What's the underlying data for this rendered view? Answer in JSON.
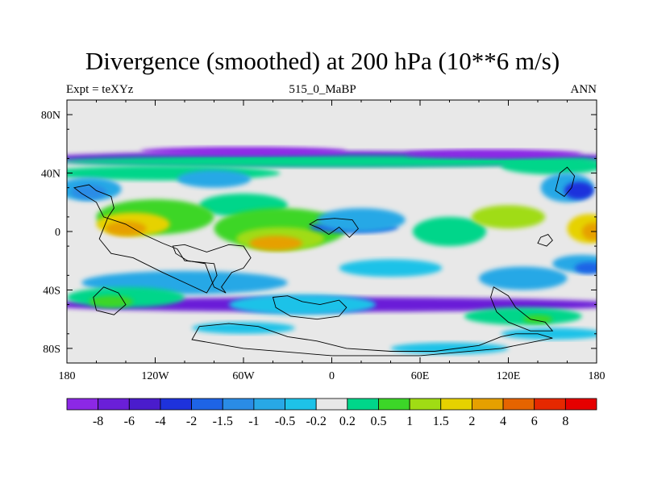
{
  "title": "Divergence (smoothed) at 200 hPa (10**6 m/s)",
  "subtitle_left": "Expt = teXYz",
  "subtitle_center": "515_0_MaBP",
  "subtitle_right": "ANN",
  "axes": {
    "lon_range": [
      -180,
      180
    ],
    "lat_range": [
      -90,
      90
    ],
    "lon_ticks": [
      {
        "value": -180,
        "label": "180"
      },
      {
        "value": -120,
        "label": "120W"
      },
      {
        "value": -60,
        "label": "60W"
      },
      {
        "value": 0,
        "label": "0"
      },
      {
        "value": 60,
        "label": "60E"
      },
      {
        "value": 120,
        "label": "120E"
      },
      {
        "value": 180,
        "label": "180"
      }
    ],
    "lat_ticks": [
      {
        "value": 80,
        "label": "80N"
      },
      {
        "value": 40,
        "label": "40N"
      },
      {
        "value": 0,
        "label": "0"
      },
      {
        "value": -40,
        "label": "40S"
      },
      {
        "value": -80,
        "label": "80S"
      }
    ],
    "minor_lon_step": 20,
    "minor_lat_step": 20
  },
  "colorbar": {
    "levels": [
      "-8",
      "-6",
      "-4",
      "-2",
      "-1.5",
      "-1",
      "-0.5",
      "-0.2",
      "0.2",
      "0.5",
      "1",
      "1.5",
      "2",
      "4",
      "6",
      "8"
    ],
    "colors": [
      "#8c28e6",
      "#6a1fd8",
      "#4a1ccc",
      "#1e32dc",
      "#1e64e6",
      "#2a8ce6",
      "#28a8e6",
      "#1ec2e8",
      "#e8e8e8",
      "#00d68a",
      "#3cd628",
      "#a0dc14",
      "#e6d200",
      "#e6a000",
      "#e66400",
      "#e62800",
      "#e60000"
    ]
  },
  "colors": {
    "background": "#e8e8e8",
    "outline": "#000000"
  },
  "field_blobs": [
    {
      "level": 1,
      "cx": 0,
      "cy": 50,
      "rx": 200,
      "ry": 5
    },
    {
      "level": 1,
      "cx": 0,
      "cy": -50,
      "rx": 200,
      "ry": 5
    },
    {
      "level": 9,
      "cx": 0,
      "cy": 48,
      "rx": 185,
      "ry": 4
    },
    {
      "level": 9,
      "cx": -115,
      "cy": 40,
      "rx": 80,
      "ry": 5
    },
    {
      "level": 9,
      "cx": 150,
      "cy": 45,
      "rx": 35,
      "ry": 6
    },
    {
      "level": 6,
      "cx": -165,
      "cy": 29,
      "rx": 22,
      "ry": 8
    },
    {
      "level": 5,
      "cx": -165,
      "cy": 27,
      "rx": 12,
      "ry": 5
    },
    {
      "level": 6,
      "cx": -80,
      "cy": 36,
      "rx": 25,
      "ry": 6
    },
    {
      "level": 6,
      "cx": 160,
      "cy": 30,
      "rx": 18,
      "ry": 10
    },
    {
      "level": 3,
      "cx": 168,
      "cy": 28,
      "rx": 10,
      "ry": 6
    },
    {
      "level": 9,
      "cx": -60,
      "cy": 18,
      "rx": 30,
      "ry": 8
    },
    {
      "level": 10,
      "cx": -120,
      "cy": 10,
      "rx": 40,
      "ry": 12
    },
    {
      "level": 12,
      "cx": -135,
      "cy": 5,
      "rx": 25,
      "ry": 8
    },
    {
      "level": 13,
      "cx": -140,
      "cy": 2,
      "rx": 14,
      "ry": 5
    },
    {
      "level": 10,
      "cx": -35,
      "cy": 2,
      "rx": 45,
      "ry": 14
    },
    {
      "level": 11,
      "cx": -35,
      "cy": -5,
      "rx": 30,
      "ry": 8
    },
    {
      "level": 13,
      "cx": -38,
      "cy": -8,
      "rx": 18,
      "ry": 5
    },
    {
      "level": 4,
      "cx": 15,
      "cy": 3,
      "rx": 30,
      "ry": 4
    },
    {
      "level": 6,
      "cx": 20,
      "cy": 8,
      "rx": 30,
      "ry": 8
    },
    {
      "level": 9,
      "cx": 80,
      "cy": 0,
      "rx": 25,
      "ry": 10
    },
    {
      "level": 11,
      "cx": 120,
      "cy": 10,
      "rx": 25,
      "ry": 8
    },
    {
      "level": 12,
      "cx": 175,
      "cy": 2,
      "rx": 15,
      "ry": 10
    },
    {
      "level": 13,
      "cx": 178,
      "cy": 0,
      "rx": 8,
      "ry": 6
    },
    {
      "level": 6,
      "cx": 170,
      "cy": -22,
      "rx": 20,
      "ry": 6
    },
    {
      "level": 4,
      "cx": 175,
      "cy": -25,
      "rx": 10,
      "ry": 4
    },
    {
      "level": 6,
      "cx": -100,
      "cy": -35,
      "rx": 70,
      "ry": 8
    },
    {
      "level": 7,
      "cx": 40,
      "cy": -25,
      "rx": 35,
      "ry": 6
    },
    {
      "level": 6,
      "cx": 130,
      "cy": -32,
      "rx": 30,
      "ry": 8
    },
    {
      "level": 9,
      "cx": -140,
      "cy": -45,
      "rx": 40,
      "ry": 7
    },
    {
      "level": 10,
      "cx": -150,
      "cy": -48,
      "rx": 15,
      "ry": 4
    },
    {
      "level": 7,
      "cx": -20,
      "cy": -50,
      "rx": 50,
      "ry": 7
    },
    {
      "level": 9,
      "cx": 130,
      "cy": -58,
      "rx": 40,
      "ry": 6
    },
    {
      "level": 10,
      "cx": 140,
      "cy": -60,
      "rx": 10,
      "ry": 3
    },
    {
      "level": 7,
      "cx": -60,
      "cy": -66,
      "rx": 35,
      "ry": 4
    },
    {
      "level": 7,
      "cx": 80,
      "cy": -80,
      "rx": 40,
      "ry": 4
    },
    {
      "level": 7,
      "cx": 150,
      "cy": -70,
      "rx": 35,
      "ry": 4
    },
    {
      "level": 0,
      "cx": -60,
      "cy": 55,
      "rx": 70,
      "ry": 3
    },
    {
      "level": 0,
      "cx": 110,
      "cy": 53,
      "rx": 60,
      "ry": 3
    }
  ],
  "continents": [
    [
      [
        -175,
        30
      ],
      [
        -165,
        32
      ],
      [
        -160,
        28
      ],
      [
        -150,
        24
      ],
      [
        -148,
        16
      ],
      [
        -152,
        10
      ],
      [
        -158,
        -5
      ],
      [
        -150,
        -15
      ],
      [
        -135,
        -18
      ],
      [
        -115,
        -28
      ],
      [
        -100,
        -35
      ],
      [
        -85,
        -42
      ],
      [
        -78,
        -30
      ],
      [
        -80,
        -22
      ],
      [
        -100,
        -20
      ],
      [
        -105,
        -12
      ],
      [
        -115,
        -8
      ],
      [
        -128,
        -2
      ],
      [
        -140,
        5
      ],
      [
        -155,
        10
      ],
      [
        -160,
        20
      ],
      [
        -170,
        26
      ]
    ],
    [
      [
        -108,
        -10
      ],
      [
        -100,
        -9
      ],
      [
        -85,
        -14
      ],
      [
        -70,
        -9
      ],
      [
        -60,
        -10
      ],
      [
        -55,
        -18
      ],
      [
        -60,
        -25
      ],
      [
        -68,
        -28
      ],
      [
        -75,
        -38
      ],
      [
        -72,
        -42
      ],
      [
        -80,
        -38
      ],
      [
        -86,
        -22
      ],
      [
        -98,
        -20
      ],
      [
        -106,
        -15
      ]
    ],
    [
      [
        -15,
        5
      ],
      [
        -8,
        2
      ],
      [
        -2,
        -2
      ],
      [
        5,
        3
      ],
      [
        12,
        -4
      ],
      [
        18,
        2
      ],
      [
        14,
        8
      ],
      [
        2,
        9
      ],
      [
        -10,
        8
      ]
    ],
    [
      [
        -40,
        -45
      ],
      [
        -30,
        -44
      ],
      [
        -20,
        -48
      ],
      [
        -8,
        -50
      ],
      [
        5,
        -47
      ],
      [
        10,
        -52
      ],
      [
        5,
        -58
      ],
      [
        -10,
        -60
      ],
      [
        -28,
        -58
      ],
      [
        -38,
        -52
      ]
    ],
    [
      [
        -155,
        -38
      ],
      [
        -145,
        -42
      ],
      [
        -140,
        -50
      ],
      [
        -148,
        -57
      ],
      [
        -160,
        -54
      ],
      [
        -162,
        -45
      ]
    ],
    [
      [
        110,
        -38
      ],
      [
        120,
        -44
      ],
      [
        125,
        -52
      ],
      [
        135,
        -60
      ],
      [
        145,
        -62
      ],
      [
        150,
        -68
      ],
      [
        135,
        -68
      ],
      [
        120,
        -62
      ],
      [
        112,
        -55
      ],
      [
        108,
        -45
      ]
    ],
    [
      [
        140,
        -8
      ],
      [
        146,
        -10
      ],
      [
        150,
        -6
      ],
      [
        147,
        -2
      ],
      [
        142,
        -4
      ]
    ],
    [
      [
        155,
        40
      ],
      [
        160,
        44
      ],
      [
        165,
        38
      ],
      [
        163,
        30
      ],
      [
        158,
        24
      ],
      [
        152,
        28
      ]
    ],
    [
      [
        -90,
        -65
      ],
      [
        -70,
        -63
      ],
      [
        -50,
        -65
      ],
      [
        -30,
        -72
      ],
      [
        -10,
        -75
      ],
      [
        10,
        -80
      ],
      [
        40,
        -82
      ],
      [
        70,
        -82
      ],
      [
        100,
        -78
      ],
      [
        115,
        -72
      ],
      [
        125,
        -70
      ],
      [
        140,
        -70
      ],
      [
        150,
        -73
      ],
      [
        115,
        -80
      ],
      [
        60,
        -85
      ],
      [
        0,
        -85
      ],
      [
        -60,
        -80
      ],
      [
        -95,
        -74
      ]
    ]
  ]
}
